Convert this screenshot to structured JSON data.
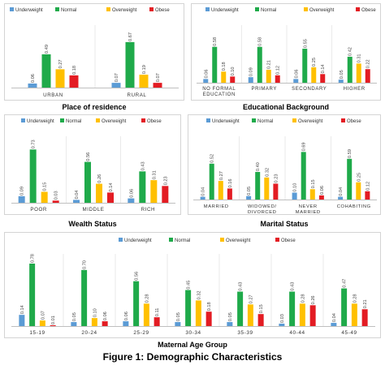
{
  "caption": "Figure 1: Demographic Characteristics",
  "legend_labels": [
    "Underweight",
    "Normal",
    "Overweight",
    "Obese"
  ],
  "colors": {
    "Underweight": "#5b9bd5",
    "Normal": "#1faa4a",
    "Overweight": "#ffc000",
    "Obese": "#e31c23"
  },
  "chart_data": [
    {
      "type": "bar",
      "title": "Place of residence",
      "categories": [
        "URBAN",
        "RURAL"
      ],
      "series": [
        {
          "name": "Underweight",
          "values": [
            0.06,
            0.07
          ]
        },
        {
          "name": "Normal",
          "values": [
            0.49,
            0.67
          ]
        },
        {
          "name": "Overweight",
          "values": [
            0.27,
            0.19
          ]
        },
        {
          "name": "Obese",
          "values": [
            0.18,
            0.07
          ]
        }
      ],
      "data_labels": [
        [
          "0.06",
          "0.49",
          "0.27",
          "0.18"
        ],
        [
          "0.07",
          "0.67",
          "0.19",
          "0.07"
        ]
      ],
      "ylim": [
        0,
        0.8
      ],
      "legend_position": "top"
    },
    {
      "type": "bar",
      "title": "Educational Background",
      "categories": [
        "NO FORMAL EDUCATION",
        "PRIMARY",
        "SECONDARY",
        "HIGHER"
      ],
      "series": [
        {
          "name": "Underweight",
          "values": [
            0.06,
            0.09,
            0.06,
            0.05
          ]
        },
        {
          "name": "Normal",
          "values": [
            0.58,
            0.58,
            0.55,
            0.42
          ]
        },
        {
          "name": "Overweight",
          "values": [
            0.18,
            0.21,
            0.25,
            0.31
          ]
        },
        {
          "name": "Obese",
          "values": [
            0.1,
            0.12,
            0.14,
            0.22
          ]
        }
      ],
      "data_labels": [
        [
          "0.06",
          "0.58",
          "0.18",
          "0.10"
        ],
        [
          "0.09",
          "0.58",
          "0.21",
          "0.12"
        ],
        [
          "0.06",
          "0.55",
          "0.25",
          "0.14"
        ],
        [
          "0.05",
          "0.42",
          "0.31",
          "0.22"
        ]
      ],
      "ylim": [
        0,
        0.8
      ],
      "legend_position": "top"
    },
    {
      "type": "bar",
      "title": "Wealth Status",
      "categories": [
        "POOR",
        "MIDDLE",
        "RICH"
      ],
      "series": [
        {
          "name": "Underweight",
          "values": [
            0.09,
            0.04,
            0.06
          ]
        },
        {
          "name": "Normal",
          "values": [
            0.73,
            0.56,
            0.43
          ]
        },
        {
          "name": "Overweight",
          "values": [
            0.15,
            0.26,
            0.31
          ]
        },
        {
          "name": "Obese",
          "values": [
            0.03,
            0.14,
            0.23
          ]
        }
      ],
      "data_labels": [
        [
          "0.09",
          "0.73",
          "0.15",
          "0.03"
        ],
        [
          "0.04",
          "0.56",
          "0.26",
          "0.14"
        ],
        [
          "0.06",
          "0.43",
          "0.31",
          "0.23"
        ]
      ],
      "ylim": [
        0,
        0.8
      ],
      "legend_position": "top"
    },
    {
      "type": "bar",
      "title": "Marital Status",
      "categories": [
        "MARRIED",
        "WIDOWED/ DIVORCED",
        "NEVER MARRIED",
        "COHABITING"
      ],
      "series": [
        {
          "name": "Underweight",
          "values": [
            0.04,
            0.05,
            0.1,
            0.04
          ]
        },
        {
          "name": "Normal",
          "values": [
            0.52,
            0.4,
            0.69,
            0.59
          ]
        },
        {
          "name": "Overweight",
          "values": [
            0.27,
            0.32,
            0.15,
            0.25
          ]
        },
        {
          "name": "Obese",
          "values": [
            0.16,
            0.23,
            0.06,
            0.12
          ]
        }
      ],
      "data_labels": [
        [
          "0.04",
          "0.52",
          "0.27",
          "0.16"
        ],
        [
          "0.05",
          "0.40",
          "0.32",
          "0.23"
        ],
        [
          "0.10",
          "0.69",
          "0.15",
          "0.06"
        ],
        [
          "0.04",
          "0.59",
          "0.25",
          "0.12"
        ]
      ],
      "ylim": [
        0,
        0.8
      ],
      "legend_position": "top"
    },
    {
      "type": "bar",
      "title": "Maternal Age Group",
      "categories": [
        "15-19",
        "20-24",
        "25-29",
        "30-34",
        "35-39",
        "40-44",
        "45-49"
      ],
      "series": [
        {
          "name": "Underweight",
          "values": [
            0.14,
            0.05,
            0.06,
            0.05,
            0.05,
            0.03,
            0.04
          ]
        },
        {
          "name": "Normal",
          "values": [
            0.78,
            0.7,
            0.56,
            0.45,
            0.43,
            0.43,
            0.47
          ]
        },
        {
          "name": "Overweight",
          "values": [
            0.07,
            0.1,
            0.28,
            0.32,
            0.27,
            0.28,
            0.28
          ]
        },
        {
          "name": "Obese",
          "values": [
            0.01,
            0.06,
            0.11,
            0.18,
            0.15,
            0.26,
            0.21
          ]
        }
      ],
      "data_labels": [
        [
          "0.14",
          "0.78",
          "0.07",
          "0.01"
        ],
        [
          "0.05",
          "0.70",
          "0.10",
          "0.06"
        ],
        [
          "0.06",
          "0.56",
          "0.28",
          "0.11"
        ],
        [
          "0.05",
          "0.45",
          "0.32",
          "0.18"
        ],
        [
          "0.05",
          "0.43",
          "0.27",
          "0.15"
        ],
        [
          "0.03",
          "0.43",
          "0.28",
          "0.26"
        ],
        [
          "0.04",
          "0.47",
          "0.28",
          "0.21"
        ]
      ],
      "ylim": [
        0,
        0.8
      ],
      "legend_position": "top"
    }
  ]
}
